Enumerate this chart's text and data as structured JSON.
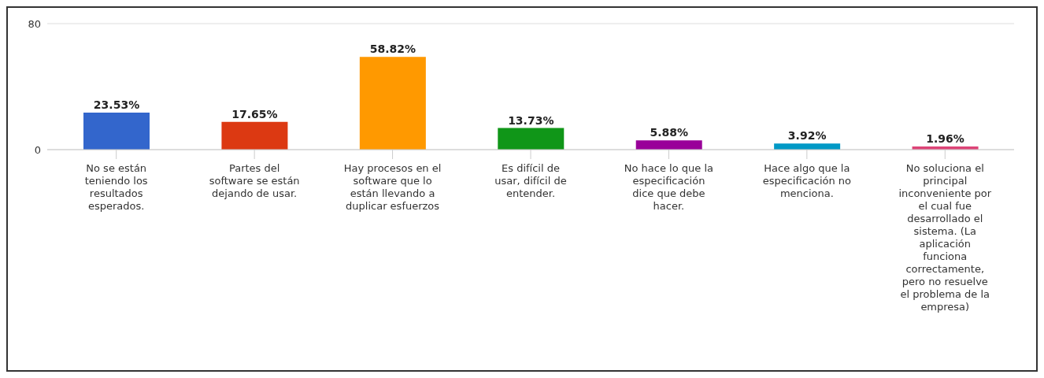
{
  "chart_data": {
    "type": "bar",
    "categories": [
      "No se están teniendo los resultados esperados.",
      "Partes del software se están dejando de usar.",
      "Hay procesos en el software que lo están llevando a duplicar esfuerzos",
      "Es difícil de usar, difícil de entender.",
      "No hace lo que la especificación dice que debe hacer.",
      "Hace algo que la especificación no menciona.",
      "No soluciona el principal inconveniente por el cual fue desarrollado el sistema. (La aplicación funciona correctamente, pero no resuelve el problema de la empresa)"
    ],
    "values": [
      23.53,
      17.65,
      58.82,
      13.73,
      5.88,
      3.92,
      1.96
    ],
    "colors": [
      "#3366cc",
      "#dc3912",
      "#ff9900",
      "#109618",
      "#990099",
      "#0099c6",
      "#dd4477"
    ],
    "value_labels": [
      "23.53%",
      "17.65%",
      "58.82%",
      "13.73%",
      "5.88%",
      "3.92%",
      "1.96%"
    ],
    "ylim": [
      0,
      80
    ],
    "yticks": [
      0,
      80
    ],
    "grid": "y"
  }
}
